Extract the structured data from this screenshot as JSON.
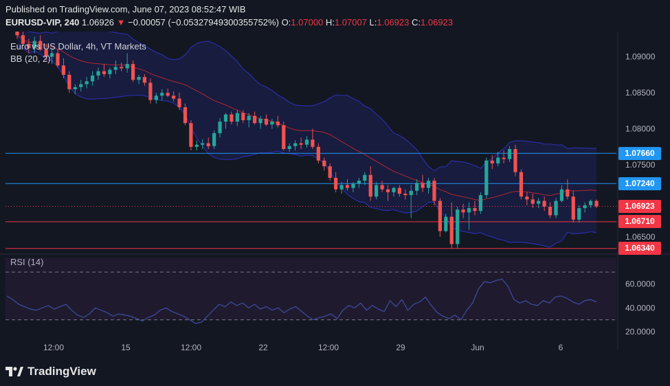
{
  "header": {
    "published": "Published on TradingView.com, June 07, 2023 08:52:47 WIB",
    "symbol": "EURUSD-VIP, 240",
    "last": "1.06926",
    "change": "−0.00057 (−0.05327949300355752%)",
    "o_label": "O:",
    "o_val": "1.07000",
    "h_label": "H:",
    "h_val": "1.07007",
    "l_label": "L:",
    "l_val": "1.06923",
    "c_label": "C:",
    "c_val": "1.06923"
  },
  "legend": {
    "title": "Euro vs US Dollar, 4h, VT Markets",
    "bb": "BB (20, 2)",
    "rsi": "RSI (14)"
  },
  "branding": {
    "logo": "TradingView"
  },
  "colors": {
    "background": "#131722",
    "up": "#26a69a",
    "down": "#ef5350",
    "blue_level": "#2196f3",
    "red_level": "#f23645",
    "bb_upper": "#2a2ea8",
    "bb_basis": "#b22833",
    "rsi_line": "#3d4a9a"
  },
  "chart_data": {
    "type": "candlestick",
    "price_axis": {
      "ticks": [
        "1.09000",
        "1.08500",
        "1.08000",
        "1.07500",
        "1.06500"
      ],
      "tick_values": [
        1.09,
        1.085,
        1.08,
        1.075,
        1.065
      ],
      "range": [
        1.0628,
        1.0935
      ]
    },
    "time_axis": [
      "12:00",
      "15",
      "12:00",
      "22",
      "12:00",
      "29",
      "Jun",
      "6"
    ],
    "levels": [
      {
        "label": "1.07660",
        "value": 1.0766,
        "color": "#2196f3"
      },
      {
        "label": "1.07240",
        "value": 1.0724,
        "color": "#2196f3"
      },
      {
        "label": "1.06710",
        "value": 1.0671,
        "color": "#f23645"
      },
      {
        "label": "1.06340",
        "value": 1.0634,
        "color": "#f23645"
      }
    ],
    "current_price": {
      "label": "1.06923",
      "value": 1.06923
    },
    "candles": [
      [
        1.0935,
        1.094,
        1.0925,
        1.093
      ],
      [
        1.093,
        1.0945,
        1.0915,
        1.0918
      ],
      [
        1.0918,
        1.0925,
        1.0905,
        1.0912
      ],
      [
        1.0912,
        1.0928,
        1.0905,
        1.0922
      ],
      [
        1.0922,
        1.093,
        1.0908,
        1.091
      ],
      [
        1.091,
        1.0918,
        1.0895,
        1.09
      ],
      [
        1.09,
        1.0912,
        1.089,
        1.0905
      ],
      [
        1.0905,
        1.091,
        1.0885,
        1.0888
      ],
      [
        1.0888,
        1.0898,
        1.087,
        1.0875
      ],
      [
        1.0875,
        1.088,
        1.085,
        1.0855
      ],
      [
        1.0855,
        1.0862,
        1.0848,
        1.0858
      ],
      [
        1.0858,
        1.0868,
        1.0852,
        1.0862
      ],
      [
        1.0862,
        1.0872,
        1.0856,
        1.0866
      ],
      [
        1.0866,
        1.088,
        1.086,
        1.0874
      ],
      [
        1.0874,
        1.0885,
        1.0868,
        1.088
      ],
      [
        1.088,
        1.089,
        1.0872,
        1.0876
      ],
      [
        1.0876,
        1.0885,
        1.087,
        1.0882
      ],
      [
        1.0882,
        1.0895,
        1.0876,
        1.0886
      ],
      [
        1.0886,
        1.0892,
        1.088,
        1.0884
      ],
      [
        1.0884,
        1.0905,
        1.0878,
        1.089
      ],
      [
        1.089,
        1.0895,
        1.0865,
        1.0868
      ],
      [
        1.0868,
        1.0875,
        1.0862,
        1.0872
      ],
      [
        1.0872,
        1.0876,
        1.086,
        1.0864
      ],
      [
        1.0864,
        1.087,
        1.0835,
        1.084
      ],
      [
        1.084,
        1.085,
        1.0835,
        1.0846
      ],
      [
        1.0846,
        1.0855,
        1.084,
        1.085
      ],
      [
        1.085,
        1.0856,
        1.0844,
        1.0846
      ],
      [
        1.0846,
        1.0852,
        1.0838,
        1.0842
      ],
      [
        1.0842,
        1.085,
        1.0826,
        1.083
      ],
      [
        1.083,
        1.0835,
        1.0805,
        1.0808
      ],
      [
        1.0808,
        1.0812,
        1.077,
        1.0775
      ],
      [
        1.0775,
        1.0784,
        1.077,
        1.0778
      ],
      [
        1.0778,
        1.0786,
        1.0772,
        1.078
      ],
      [
        1.078,
        1.0788,
        1.0772,
        1.0776
      ],
      [
        1.0776,
        1.0798,
        1.0772,
        1.0794
      ],
      [
        1.0794,
        1.0815,
        1.0788,
        1.081
      ],
      [
        1.081,
        1.0822,
        1.08,
        1.082
      ],
      [
        1.082,
        1.0824,
        1.0806,
        1.081
      ],
      [
        1.081,
        1.0826,
        1.0804,
        1.0822
      ],
      [
        1.0822,
        1.0826,
        1.0808,
        1.0812
      ],
      [
        1.0812,
        1.0822,
        1.0802,
        1.0818
      ],
      [
        1.0818,
        1.0824,
        1.0806,
        1.0808
      ],
      [
        1.0808,
        1.0818,
        1.08,
        1.0814
      ],
      [
        1.0814,
        1.082,
        1.0804,
        1.0806
      ],
      [
        1.0806,
        1.0814,
        1.08,
        1.081
      ],
      [
        1.081,
        1.0818,
        1.0802,
        1.0805
      ],
      [
        1.0805,
        1.081,
        1.077,
        1.0772
      ],
      [
        1.0772,
        1.078,
        1.0768,
        1.0776
      ],
      [
        1.0776,
        1.0784,
        1.077,
        1.078
      ],
      [
        1.078,
        1.0788,
        1.0772,
        1.0778
      ],
      [
        1.0778,
        1.079,
        1.0774,
        1.0785
      ],
      [
        1.0785,
        1.08,
        1.0772,
        1.0775
      ],
      [
        1.0775,
        1.078,
        1.0752,
        1.0756
      ],
      [
        1.0756,
        1.076,
        1.0742,
        1.0748
      ],
      [
        1.0748,
        1.0752,
        1.0728,
        1.0732
      ],
      [
        1.0732,
        1.074,
        1.0712,
        1.0716
      ],
      [
        1.0716,
        1.0726,
        1.071,
        1.0722
      ],
      [
        1.0722,
        1.073,
        1.0714,
        1.0718
      ],
      [
        1.0718,
        1.0726,
        1.0712,
        1.0724
      ],
      [
        1.0724,
        1.0732,
        1.0718,
        1.0728
      ],
      [
        1.0728,
        1.074,
        1.0722,
        1.0736
      ],
      [
        1.0736,
        1.0748,
        1.07,
        1.0706
      ],
      [
        1.0706,
        1.0726,
        1.0702,
        1.0722
      ],
      [
        1.0722,
        1.0728,
        1.0712,
        1.0716
      ],
      [
        1.0716,
        1.0722,
        1.07,
        1.0712
      ],
      [
        1.0712,
        1.072,
        1.0706,
        1.0718
      ],
      [
        1.0718,
        1.0722,
        1.0706,
        1.071
      ],
      [
        1.071,
        1.0716,
        1.0702,
        1.0708
      ],
      [
        1.0708,
        1.0722,
        1.0676,
        1.0714
      ],
      [
        1.0714,
        1.073,
        1.0708,
        1.0725
      ],
      [
        1.0725,
        1.0736,
        1.0712,
        1.0718
      ],
      [
        1.0718,
        1.0732,
        1.071,
        1.0728
      ],
      [
        1.0728,
        1.0732,
        1.0694,
        1.07
      ],
      [
        1.07,
        1.0704,
        1.065,
        1.0658
      ],
      [
        1.0658,
        1.0682,
        1.0656,
        1.0678
      ],
      [
        1.0678,
        1.0698,
        1.0634,
        1.064
      ],
      [
        1.064,
        1.0692,
        1.0634,
        1.0688
      ],
      [
        1.0688,
        1.0696,
        1.0676,
        1.0684
      ],
      [
        1.0684,
        1.0698,
        1.066,
        1.069
      ],
      [
        1.069,
        1.07,
        1.068,
        1.0686
      ],
      [
        1.0686,
        1.0712,
        1.0682,
        1.0708
      ],
      [
        1.0708,
        1.076,
        1.0704,
        1.0756
      ],
      [
        1.0756,
        1.0764,
        1.0744,
        1.0752
      ],
      [
        1.0752,
        1.0768,
        1.0748,
        1.076
      ],
      [
        1.076,
        1.077,
        1.0752,
        1.0758
      ],
      [
        1.0758,
        1.0776,
        1.0754,
        1.0772
      ],
      [
        1.0772,
        1.0778,
        1.0734,
        1.074
      ],
      [
        1.074,
        1.0744,
        1.0702,
        1.0706
      ],
      [
        1.0706,
        1.0712,
        1.0694,
        1.0702
      ],
      [
        1.0702,
        1.071,
        1.069,
        1.0696
      ],
      [
        1.0696,
        1.0704,
        1.069,
        1.07
      ],
      [
        1.07,
        1.0706,
        1.0686,
        1.0692
      ],
      [
        1.0692,
        1.0698,
        1.0676,
        1.068
      ],
      [
        1.068,
        1.0704,
        1.0676,
        1.07
      ],
      [
        1.07,
        1.0722,
        1.0698,
        1.0716
      ],
      [
        1.0716,
        1.073,
        1.0702,
        1.0706
      ],
      [
        1.0706,
        1.0714,
        1.067,
        1.0674
      ],
      [
        1.0674,
        1.0694,
        1.067,
        1.069
      ],
      [
        1.069,
        1.0698,
        1.0684,
        1.0694
      ],
      [
        1.0694,
        1.0702,
        1.069,
        1.07
      ],
      [
        1.07,
        1.0702,
        1.069,
        1.06923
      ]
    ],
    "rsi": {
      "ticks": [
        "60.0000",
        "40.0000",
        "20.0000"
      ],
      "tick_values": [
        60,
        40,
        20
      ],
      "range": [
        16,
        85
      ],
      "bands": [
        70,
        30
      ],
      "values": [
        50,
        47,
        43,
        41,
        39,
        38,
        40,
        42,
        39,
        41,
        43,
        38,
        34,
        32,
        35,
        40,
        38,
        36,
        33,
        35,
        34,
        33,
        31,
        29,
        32,
        34,
        38,
        40,
        37,
        35,
        33,
        30,
        27,
        28,
        33,
        38,
        43,
        41,
        45,
        42,
        44,
        40,
        43,
        39,
        41,
        38,
        40,
        36,
        39,
        41,
        37,
        33,
        30,
        32,
        33,
        35,
        31,
        38,
        42,
        40,
        44,
        38,
        42,
        39,
        37,
        46,
        41,
        47,
        38,
        43,
        45,
        49,
        42,
        36,
        33,
        31,
        34,
        30,
        38,
        44,
        56,
        62,
        61,
        63,
        64,
        58,
        47,
        44,
        46,
        43,
        42,
        46,
        44,
        49,
        50,
        48,
        45,
        43,
        46,
        47,
        45
      ]
    }
  }
}
